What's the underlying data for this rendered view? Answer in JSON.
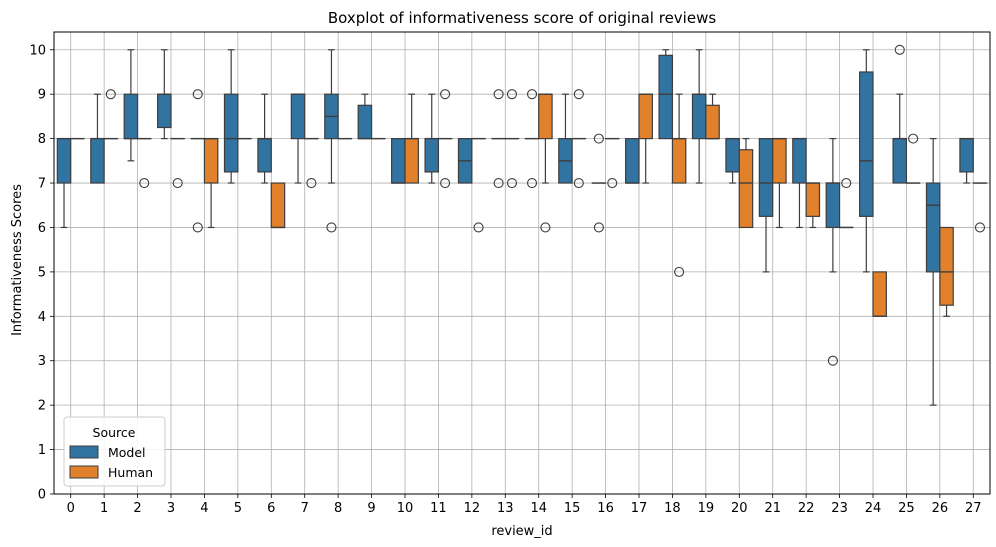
{
  "chart_data": {
    "type": "boxplot",
    "title": "Boxplot of informativeness score of original reviews",
    "xlabel": "review_id",
    "ylabel": "Informativeness Scores",
    "ylim": [
      0,
      10.4
    ],
    "yticks": [
      0,
      1,
      2,
      3,
      4,
      5,
      6,
      7,
      8,
      9,
      10
    ],
    "categories": [
      "0",
      "1",
      "2",
      "3",
      "4",
      "5",
      "6",
      "7",
      "8",
      "9",
      "10",
      "11",
      "12",
      "13",
      "14",
      "15",
      "16",
      "17",
      "18",
      "19",
      "20",
      "21",
      "22",
      "23",
      "24",
      "25",
      "26",
      "27"
    ],
    "grid": true,
    "legend": {
      "title": "Source",
      "position": "lower-left"
    },
    "colors": {
      "Model": "#3274a1",
      "Human": "#e1812c"
    },
    "series": [
      {
        "name": "Model",
        "boxes": [
          {
            "id": "0",
            "q1": 7,
            "med": 8,
            "q3": 8,
            "lo": 6,
            "hi": 8,
            "fl": []
          },
          {
            "id": "1",
            "q1": 7,
            "med": 8,
            "q3": 8,
            "lo": 7,
            "hi": 9,
            "fl": []
          },
          {
            "id": "2",
            "q1": 8,
            "med": 8,
            "q3": 9,
            "lo": 7.5,
            "hi": 10,
            "fl": []
          },
          {
            "id": "3",
            "q1": 8.25,
            "med": 9,
            "q3": 9,
            "lo": 8,
            "hi": 10,
            "fl": []
          },
          {
            "id": "4",
            "q1": 8,
            "med": 8,
            "q3": 8,
            "lo": 8,
            "hi": 8,
            "fl": [
              6,
              9
            ]
          },
          {
            "id": "5",
            "q1": 7.25,
            "med": 8,
            "q3": 9,
            "lo": 7,
            "hi": 10,
            "fl": []
          },
          {
            "id": "6",
            "q1": 7.25,
            "med": 8,
            "q3": 8,
            "lo": 7,
            "hi": 9,
            "fl": []
          },
          {
            "id": "7",
            "q1": 8,
            "med": 9,
            "q3": 9,
            "lo": 7,
            "hi": 9,
            "fl": []
          },
          {
            "id": "8",
            "q1": 8,
            "med": 8.5,
            "q3": 9,
            "lo": 7,
            "hi": 10,
            "fl": [
              6
            ]
          },
          {
            "id": "9",
            "q1": 8,
            "med": 8,
            "q3": 8.75,
            "lo": 8,
            "hi": 9,
            "fl": []
          },
          {
            "id": "10",
            "q1": 7,
            "med": 7,
            "q3": 8,
            "lo": 7,
            "hi": 8,
            "fl": []
          },
          {
            "id": "11",
            "q1": 7.25,
            "med": 8,
            "q3": 8,
            "lo": 7,
            "hi": 9,
            "fl": []
          },
          {
            "id": "12",
            "q1": 7,
            "med": 7.5,
            "q3": 8,
            "lo": 7,
            "hi": 8,
            "fl": []
          },
          {
            "id": "13",
            "q1": 8,
            "med": 8,
            "q3": 8,
            "lo": 8,
            "hi": 8,
            "fl": [
              7,
              9
            ]
          },
          {
            "id": "14",
            "q1": 8,
            "med": 8,
            "q3": 8,
            "lo": 8,
            "hi": 8,
            "fl": [
              7,
              9
            ]
          },
          {
            "id": "15",
            "q1": 7,
            "med": 7.5,
            "q3": 8,
            "lo": 7,
            "hi": 9,
            "fl": []
          },
          {
            "id": "16",
            "q1": 7,
            "med": 7,
            "q3": 7,
            "lo": 7,
            "hi": 7,
            "fl": [
              6,
              8
            ]
          },
          {
            "id": "17",
            "q1": 7,
            "med": 7,
            "q3": 8,
            "lo": 7,
            "hi": 8,
            "fl": []
          },
          {
            "id": "18",
            "q1": 8,
            "med": 9,
            "q3": 9.875,
            "lo": 8,
            "hi": 10,
            "fl": []
          },
          {
            "id": "19",
            "q1": 8,
            "med": 9,
            "q3": 9,
            "lo": 7,
            "hi": 10,
            "fl": []
          },
          {
            "id": "20",
            "q1": 7.25,
            "med": 8,
            "q3": 8,
            "lo": 7,
            "hi": 8,
            "fl": []
          },
          {
            "id": "21",
            "q1": 6.25,
            "med": 7,
            "q3": 8,
            "lo": 5,
            "hi": 8,
            "fl": []
          },
          {
            "id": "22",
            "q1": 7,
            "med": 8,
            "q3": 8,
            "lo": 6,
            "hi": 8,
            "fl": []
          },
          {
            "id": "23",
            "q1": 6,
            "med": 7,
            "q3": 7,
            "lo": 5,
            "hi": 8,
            "fl": [
              3
            ]
          },
          {
            "id": "24",
            "q1": 6.25,
            "med": 7.5,
            "q3": 9.5,
            "lo": 5,
            "hi": 10,
            "fl": []
          },
          {
            "id": "25",
            "q1": 7,
            "med": 8,
            "q3": 8,
            "lo": 7,
            "hi": 9,
            "fl": [
              10
            ]
          },
          {
            "id": "26",
            "q1": 5,
            "med": 6.5,
            "q3": 7,
            "lo": 2,
            "hi": 8,
            "fl": []
          },
          {
            "id": "27",
            "q1": 7.25,
            "med": 8,
            "q3": 8,
            "lo": 7,
            "hi": 8,
            "fl": []
          }
        ]
      },
      {
        "name": "Human",
        "boxes": [
          {
            "id": "0",
            "q1": 8,
            "med": 8,
            "q3": 8,
            "lo": 8,
            "hi": 8,
            "fl": []
          },
          {
            "id": "1",
            "q1": 8,
            "med": 8,
            "q3": 8,
            "lo": 8,
            "hi": 8,
            "fl": [
              9
            ]
          },
          {
            "id": "2",
            "q1": 8,
            "med": 8,
            "q3": 8,
            "lo": 8,
            "hi": 8,
            "fl": [
              7
            ]
          },
          {
            "id": "3",
            "q1": 8,
            "med": 8,
            "q3": 8,
            "lo": 8,
            "hi": 8,
            "fl": [
              7
            ]
          },
          {
            "id": "4",
            "q1": 7,
            "med": 8,
            "q3": 8,
            "lo": 6,
            "hi": 8,
            "fl": []
          },
          {
            "id": "5",
            "q1": 8,
            "med": 8,
            "q3": 8,
            "lo": 8,
            "hi": 8,
            "fl": []
          },
          {
            "id": "6",
            "q1": 6,
            "med": 6,
            "q3": 7,
            "lo": 6,
            "hi": 7,
            "fl": []
          },
          {
            "id": "7",
            "q1": 8,
            "med": 8,
            "q3": 8,
            "lo": 8,
            "hi": 8,
            "fl": [
              7
            ]
          },
          {
            "id": "8",
            "q1": 8,
            "med": 8,
            "q3": 8,
            "lo": 8,
            "hi": 8,
            "fl": []
          },
          {
            "id": "9",
            "q1": 8,
            "med": 8,
            "q3": 8,
            "lo": 8,
            "hi": 8,
            "fl": []
          },
          {
            "id": "10",
            "q1": 7,
            "med": 8,
            "q3": 8,
            "lo": 7,
            "hi": 9,
            "fl": []
          },
          {
            "id": "11",
            "q1": 8,
            "med": 8,
            "q3": 8,
            "lo": 8,
            "hi": 8,
            "fl": [
              7,
              9
            ]
          },
          {
            "id": "12",
            "q1": 8,
            "med": 8,
            "q3": 8,
            "lo": 8,
            "hi": 8,
            "fl": [
              6
            ]
          },
          {
            "id": "13",
            "q1": 8,
            "med": 8,
            "q3": 8,
            "lo": 8,
            "hi": 8,
            "fl": [
              7,
              9
            ]
          },
          {
            "id": "14",
            "q1": 8,
            "med": 9,
            "q3": 9,
            "lo": 7,
            "hi": 9,
            "fl": [
              6
            ]
          },
          {
            "id": "15",
            "q1": 8,
            "med": 8,
            "q3": 8,
            "lo": 8,
            "hi": 8,
            "fl": [
              7,
              9
            ]
          },
          {
            "id": "16",
            "q1": 8,
            "med": 8,
            "q3": 8,
            "lo": 8,
            "hi": 8,
            "fl": [
              7
            ]
          },
          {
            "id": "17",
            "q1": 8,
            "med": 9,
            "q3": 9,
            "lo": 7,
            "hi": 9,
            "fl": []
          },
          {
            "id": "18",
            "q1": 7,
            "med": 8,
            "q3": 8,
            "lo": 7,
            "hi": 9,
            "fl": [
              5
            ]
          },
          {
            "id": "19",
            "q1": 8,
            "med": 8,
            "q3": 8.75,
            "lo": 8,
            "hi": 9,
            "fl": []
          },
          {
            "id": "20",
            "q1": 6,
            "med": 7,
            "q3": 7.75,
            "lo": 6,
            "hi": 8,
            "fl": []
          },
          {
            "id": "21",
            "q1": 7,
            "med": 8,
            "q3": 8,
            "lo": 6,
            "hi": 8,
            "fl": []
          },
          {
            "id": "22",
            "q1": 6.25,
            "med": 7,
            "q3": 7,
            "lo": 6,
            "hi": 7,
            "fl": []
          },
          {
            "id": "23",
            "q1": 6,
            "med": 6,
            "q3": 6,
            "lo": 6,
            "hi": 6,
            "fl": [
              7
            ]
          },
          {
            "id": "24",
            "q1": 4,
            "med": 4,
            "q3": 5,
            "lo": 4,
            "hi": 5,
            "fl": []
          },
          {
            "id": "25",
            "q1": 7,
            "med": 7,
            "q3": 7,
            "lo": 7,
            "hi": 7,
            "fl": [
              8
            ]
          },
          {
            "id": "26",
            "q1": 4.25,
            "med": 5,
            "q3": 6,
            "lo": 4,
            "hi": 6,
            "fl": []
          },
          {
            "id": "27",
            "q1": 7,
            "med": 7,
            "q3": 7,
            "lo": 7,
            "hi": 7,
            "fl": [
              6
            ]
          }
        ]
      }
    ]
  }
}
